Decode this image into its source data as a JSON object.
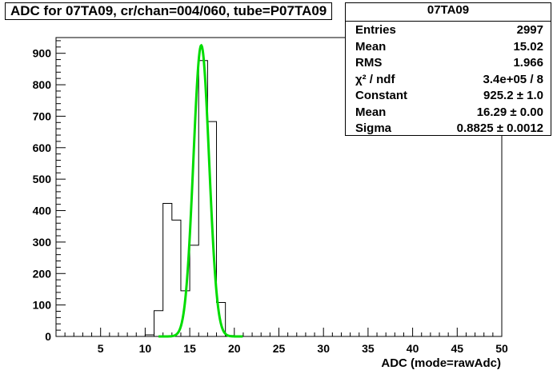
{
  "title": "ADC for 07TA09,  cr/chan=004/060,  tube=P07TA09",
  "stats": {
    "name": "07TA09",
    "rows": [
      {
        "key": "Entries",
        "value": "2997"
      },
      {
        "key": "Mean",
        "value": "15.02"
      },
      {
        "key": "RMS",
        "value": "1.966"
      },
      {
        "key": "χ² / ndf",
        "value": "3.4e+05 / 8"
      },
      {
        "key": "Constant",
        "value": "925.2 ± 1.0"
      },
      {
        "key": "Mean",
        "value": "16.29 ± 0.00"
      },
      {
        "key": "Sigma",
        "value": "0.8825 ± 0.0012"
      }
    ]
  },
  "colors": {
    "histogram": "#000000",
    "fit": "#00dd00"
  },
  "chart_data": {
    "type": "histogram",
    "xlabel": "ADC (mode=rawAdc)",
    "ylabel": "",
    "xlim": [
      0,
      50
    ],
    "ylim": [
      0,
      950
    ],
    "x_ticks": [
      5,
      10,
      15,
      20,
      25,
      30,
      35,
      40,
      45,
      50
    ],
    "y_ticks": [
      0,
      100,
      200,
      300,
      400,
      500,
      600,
      700,
      800,
      900
    ],
    "grid": false,
    "bins": [
      {
        "x0": 9,
        "x1": 10,
        "count": 0
      },
      {
        "x0": 10,
        "x1": 11,
        "count": 5
      },
      {
        "x0": 11,
        "x1": 12,
        "count": 82
      },
      {
        "x0": 12,
        "x1": 13,
        "count": 423
      },
      {
        "x0": 13,
        "x1": 14,
        "count": 370
      },
      {
        "x0": 14,
        "x1": 15,
        "count": 145
      },
      {
        "x0": 15,
        "x1": 16,
        "count": 290
      },
      {
        "x0": 16,
        "x1": 17,
        "count": 877
      },
      {
        "x0": 17,
        "x1": 18,
        "count": 683
      },
      {
        "x0": 18,
        "x1": 19,
        "count": 108
      },
      {
        "x0": 19,
        "x1": 20,
        "count": 3
      },
      {
        "x0": 20,
        "x1": 21,
        "count": 0
      }
    ],
    "fit": {
      "function": "gaus",
      "constant": 925.2,
      "mean": 16.29,
      "sigma": 0.8825,
      "x_range": [
        11.5,
        21
      ]
    }
  }
}
